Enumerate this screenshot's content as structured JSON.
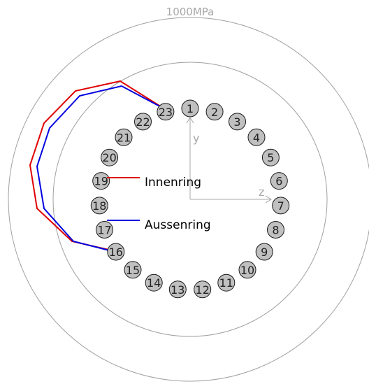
{
  "scale_label": "1000MPa",
  "axis": {
    "y_label": "y",
    "z_label": "z",
    "color": "#a8a8a8"
  },
  "colors": {
    "ring_circle": "#a0a0a0",
    "ball_fill": "#c0c0c0",
    "ball_stroke": "#1a1a1a"
  },
  "balls": [
    "1",
    "2",
    "3",
    "4",
    "5",
    "6",
    "7",
    "8",
    "9",
    "10",
    "11",
    "12",
    "13",
    "14",
    "15",
    "16",
    "17",
    "18",
    "19",
    "20",
    "21",
    "22",
    "23"
  ],
  "legend": [
    {
      "label": "Innenring",
      "color": "#e00000"
    },
    {
      "label": "Aussenring",
      "color": "#0000e0"
    }
  ]
}
